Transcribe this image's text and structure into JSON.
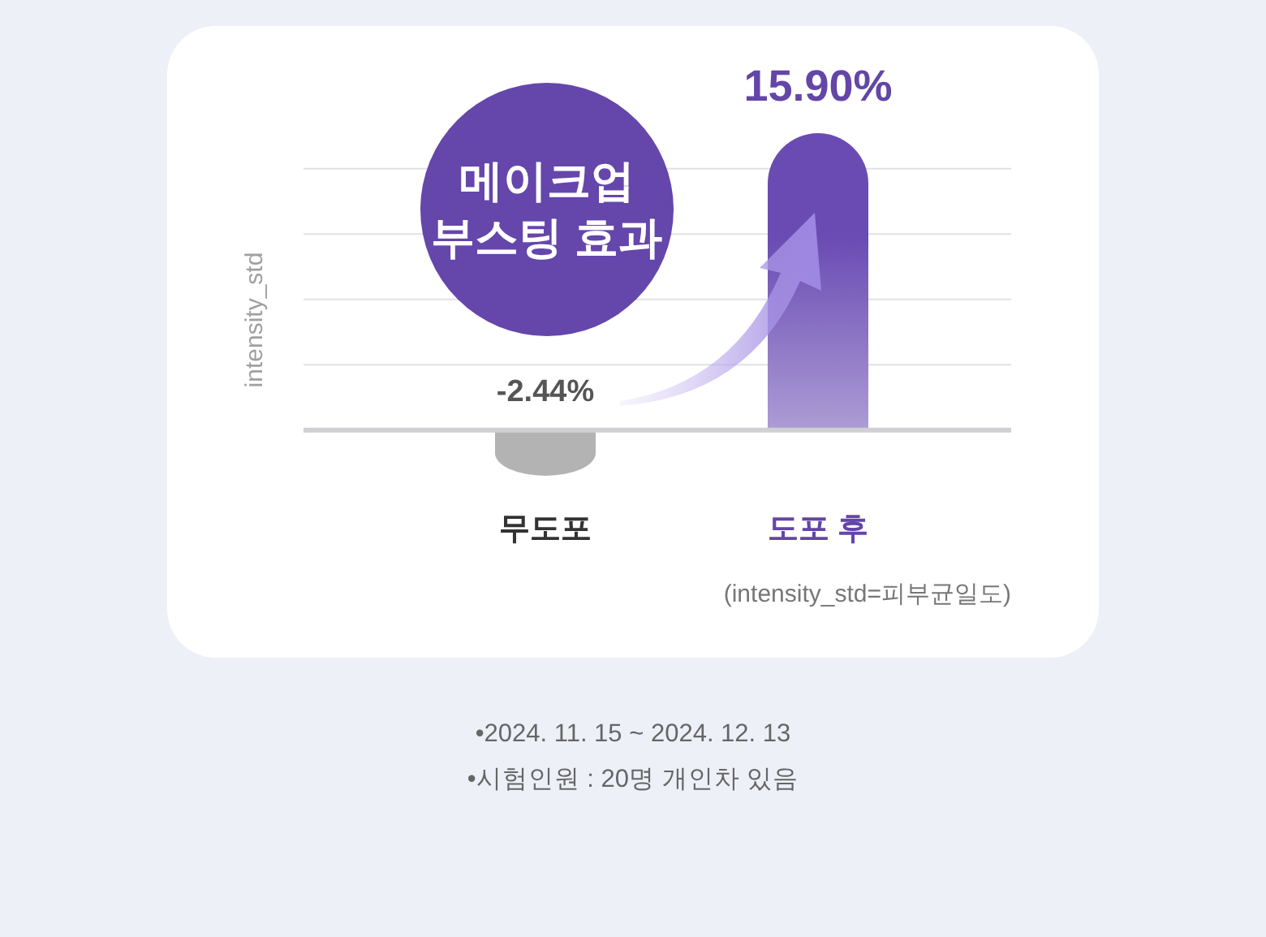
{
  "chart_data": {
    "type": "bar",
    "categories": [
      "무도포",
      "도포 후"
    ],
    "values": [
      -2.44,
      15.9
    ],
    "colors": [
      "#b3b3b3",
      "#6a4bb3"
    ],
    "value_labels": [
      "-2.44%",
      "15.90%"
    ],
    "ylabel": "intensity_std",
    "yticks": [
      {
        "value": 3.5,
        "label": null
      },
      {
        "value": 7,
        "label": null
      },
      {
        "value": 10.5,
        "label": null
      },
      {
        "value": 14,
        "label": null
      }
    ],
    "grid": "y",
    "tick_labels": "x",
    "annotations": [
      "메이크업 부스팅 효과",
      "(intensity_std=피부균일도)",
      "•2024. 11. 15 ~ 2024. 12. 13",
      "•시험인원 : 20명 개인차 있음"
    ]
  }
}
